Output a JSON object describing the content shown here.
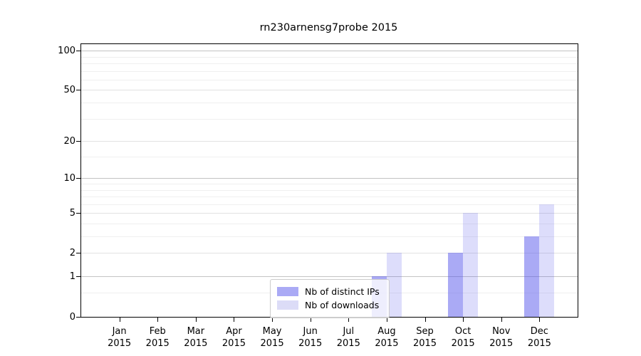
{
  "title": "rn230arnensg7probe 2015",
  "legend": {
    "items": [
      {
        "label": "Nb of distinct IPs",
        "color": "#aaaaf5"
      },
      {
        "label": "Nb of downloads",
        "color": "#dcdcf7"
      }
    ]
  },
  "chart_data": {
    "type": "bar",
    "title": "rn230arnensg7probe 2015",
    "categories": [
      "Jan 2015",
      "Feb 2015",
      "Mar 2015",
      "Apr 2015",
      "May 2015",
      "Jun 2015",
      "Jul 2015",
      "Aug 2015",
      "Sep 2015",
      "Oct 2015",
      "Nov 2015",
      "Dec 2015"
    ],
    "series": [
      {
        "name": "Nb of distinct IPs",
        "color": "rgba(85,85,235,0.5)",
        "values": [
          0,
          0,
          0,
          0,
          0,
          0,
          0,
          1,
          0,
          2,
          0,
          3
        ]
      },
      {
        "name": "Nb of downloads",
        "color": "rgba(85,85,235,0.2)",
        "values": [
          0,
          0,
          0,
          0,
          0,
          0,
          0,
          2,
          0,
          5,
          0,
          6
        ]
      }
    ],
    "xlabel": "",
    "ylabel": "",
    "y_scale": "log1p",
    "ylim": [
      0,
      112
    ],
    "y_ticks": [
      0,
      1,
      2,
      5,
      10,
      20,
      50,
      100
    ],
    "y_gridlines": {
      "major": [
        1,
        10,
        100
      ],
      "mid": [
        2,
        5,
        20,
        50
      ],
      "minor": [
        0.5,
        3,
        4,
        6,
        7,
        8,
        9,
        15,
        30,
        40,
        60,
        70,
        80,
        90
      ]
    },
    "grid": "horizontal only",
    "legend_position": "inside lower-center-left"
  }
}
